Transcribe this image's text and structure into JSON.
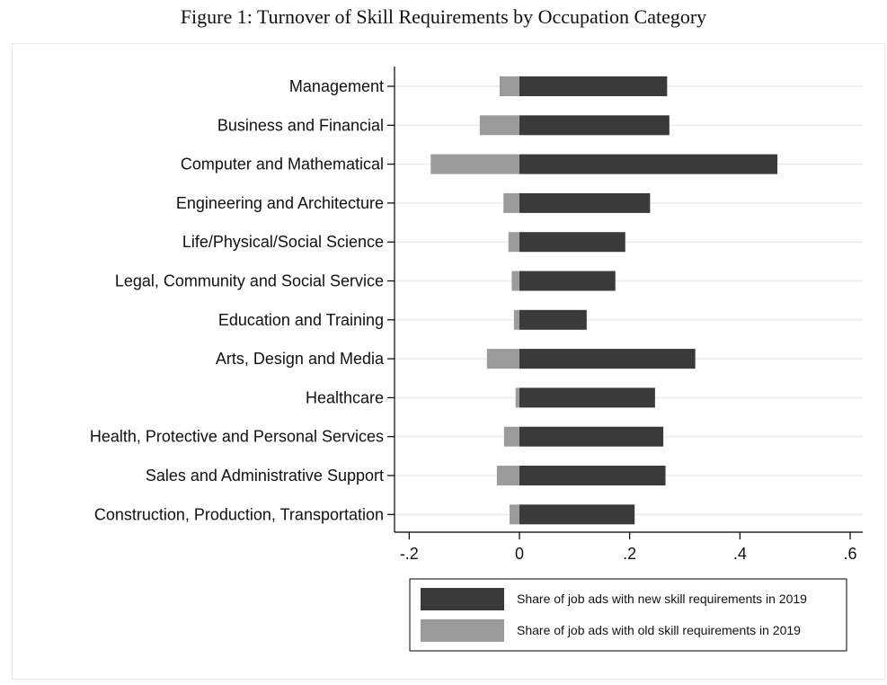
{
  "figure": {
    "title": "Figure 1: Turnover of Skill Requirements by Occupation Category"
  },
  "colors": {
    "new": "#3a3a3a",
    "old": "#9b9b9b",
    "grid": "#e8edf0",
    "axis": "#000000"
  },
  "chart_data": {
    "type": "bar",
    "orientation": "horizontal",
    "stacked": "diverging",
    "title": "",
    "xlabel": "",
    "ylabel": "",
    "xlim": [
      -0.2,
      0.6
    ],
    "xticks": [
      -0.2,
      0,
      0.2,
      0.4,
      0.6
    ],
    "xtick_labels": [
      "-.2",
      "0",
      ".2",
      ".4",
      ".6"
    ],
    "grid": "horizontal",
    "legend_position": "bottom",
    "categories": [
      "Management",
      "Business and Financial",
      "Computer and Mathematical",
      "Engineering and Architecture",
      "Life/Physical/Social Science",
      "Legal, Community and Social Service",
      "Education and Training",
      "Arts, Design and Media",
      "Healthcare",
      "Health, Protective and Personal Services",
      "Sales and Administrative Support",
      "Construction, Production, Transportation"
    ],
    "series": [
      {
        "name": "Share of job ads with new skill requirements in 2019",
        "color": "#3a3a3a",
        "values": [
          0.268,
          0.272,
          0.468,
          0.237,
          0.192,
          0.174,
          0.122,
          0.319,
          0.246,
          0.261,
          0.265,
          0.209
        ]
      },
      {
        "name": "Share of job ads with old skill requirements in 2019",
        "color": "#9b9b9b",
        "values": [
          -0.036,
          -0.072,
          -0.161,
          -0.029,
          -0.02,
          -0.014,
          -0.01,
          -0.059,
          -0.007,
          -0.028,
          -0.041,
          -0.018
        ]
      }
    ]
  }
}
